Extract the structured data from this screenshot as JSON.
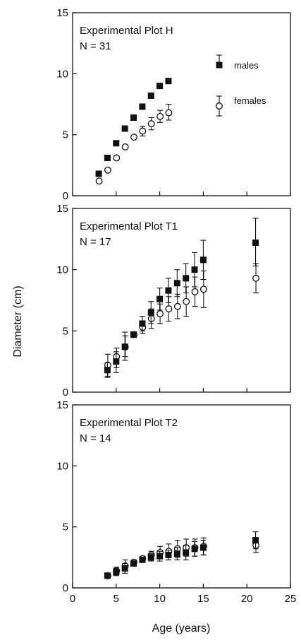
{
  "chart_data": {
    "type": "scatter",
    "ylabel": "Diameter (cm)",
    "xlabel": "Age (years)",
    "xlim": [
      0,
      25
    ],
    "x_ticks": [
      "0",
      "5",
      "10",
      "15",
      "20",
      "25"
    ],
    "y_ticks": [
      "0",
      "5",
      "10",
      "15"
    ],
    "ylim": [
      0,
      15
    ],
    "legend": {
      "placement": "right",
      "panel": 0,
      "males": "males",
      "females": "females"
    },
    "panels": [
      {
        "title": "Experimental Plot H",
        "n_label": "N = 31",
        "series": [
          {
            "name": "males",
            "points": [
              {
                "x": 3,
                "y": 1.8,
                "lo": 1.7,
                "hi": 1.9
              },
              {
                "x": 4,
                "y": 3.1,
                "lo": 3.0,
                "hi": 3.2
              },
              {
                "x": 5,
                "y": 4.3,
                "lo": 4.2,
                "hi": 4.4
              },
              {
                "x": 6,
                "y": 5.5,
                "lo": 5.4,
                "hi": 5.6
              },
              {
                "x": 7,
                "y": 6.4,
                "lo": 6.3,
                "hi": 6.5
              },
              {
                "x": 8,
                "y": 7.3,
                "lo": 7.2,
                "hi": 7.4
              },
              {
                "x": 9,
                "y": 8.2,
                "lo": 8.1,
                "hi": 8.3
              },
              {
                "x": 10,
                "y": 9.0,
                "lo": 8.9,
                "hi": 9.1
              },
              {
                "x": 11,
                "y": 9.4,
                "lo": 9.3,
                "hi": 9.5
              }
            ]
          },
          {
            "name": "females",
            "points": [
              {
                "x": 3,
                "y": 1.2,
                "lo": 1.1,
                "hi": 1.3
              },
              {
                "x": 4,
                "y": 2.1,
                "lo": 2.0,
                "hi": 2.2
              },
              {
                "x": 5,
                "y": 3.1,
                "lo": 3.0,
                "hi": 3.2
              },
              {
                "x": 6,
                "y": 4.0,
                "lo": 3.9,
                "hi": 4.1
              },
              {
                "x": 7,
                "y": 4.8,
                "lo": 4.7,
                "hi": 4.9
              },
              {
                "x": 8,
                "y": 5.3,
                "lo": 4.9,
                "hi": 5.7
              },
              {
                "x": 9,
                "y": 5.9,
                "lo": 5.4,
                "hi": 6.4
              },
              {
                "x": 10,
                "y": 6.5,
                "lo": 6.0,
                "hi": 7.0
              },
              {
                "x": 11,
                "y": 6.8,
                "lo": 6.2,
                "hi": 7.5
              }
            ]
          }
        ]
      },
      {
        "title": "Experimental Plot T1",
        "n_label": "N = 17",
        "series": [
          {
            "name": "males",
            "points": [
              {
                "x": 4,
                "y": 1.8,
                "lo": 1.2,
                "hi": 2.4
              },
              {
                "x": 5,
                "y": 2.5,
                "lo": 1.6,
                "hi": 3.3
              },
              {
                "x": 6,
                "y": 3.7,
                "lo": 2.6,
                "hi": 4.9
              },
              {
                "x": 7,
                "y": 4.7,
                "lo": 4.6,
                "hi": 4.8
              },
              {
                "x": 8,
                "y": 5.6,
                "lo": 5.0,
                "hi": 6.2
              },
              {
                "x": 9,
                "y": 6.5,
                "lo": 5.6,
                "hi": 7.4
              },
              {
                "x": 10,
                "y": 7.6,
                "lo": 6.7,
                "hi": 8.5
              },
              {
                "x": 11,
                "y": 8.3,
                "lo": 7.3,
                "hi": 9.3
              },
              {
                "x": 12,
                "y": 8.9,
                "lo": 7.8,
                "hi": 10.0
              },
              {
                "x": 13,
                "y": 9.3,
                "lo": 8.1,
                "hi": 10.5
              },
              {
                "x": 14,
                "y": 10.0,
                "lo": 8.6,
                "hi": 11.4
              },
              {
                "x": 15,
                "y": 10.8,
                "lo": 9.2,
                "hi": 12.4
              },
              {
                "x": 21,
                "y": 12.2,
                "lo": 10.3,
                "hi": 14.2
              }
            ]
          },
          {
            "name": "females",
            "points": [
              {
                "x": 4,
                "y": 2.2,
                "lo": 1.3,
                "hi": 3.1
              },
              {
                "x": 5,
                "y": 2.9,
                "lo": 2.0,
                "hi": 3.6
              },
              {
                "x": 6,
                "y": 3.7,
                "lo": 2.9,
                "hi": 4.6
              },
              {
                "x": 7,
                "y": 4.7,
                "lo": 4.6,
                "hi": 4.8
              },
              {
                "x": 8,
                "y": 5.3,
                "lo": 4.8,
                "hi": 5.8
              },
              {
                "x": 9,
                "y": 6.0,
                "lo": 5.2,
                "hi": 6.8
              },
              {
                "x": 10,
                "y": 6.4,
                "lo": 5.6,
                "hi": 7.2
              },
              {
                "x": 11,
                "y": 6.8,
                "lo": 5.8,
                "hi": 7.8
              },
              {
                "x": 12,
                "y": 7.0,
                "lo": 6.0,
                "hi": 8.0
              },
              {
                "x": 13,
                "y": 7.4,
                "lo": 6.2,
                "hi": 8.6
              },
              {
                "x": 14,
                "y": 8.2,
                "lo": 7.0,
                "hi": 9.4
              },
              {
                "x": 15,
                "y": 8.4,
                "lo": 6.9,
                "hi": 9.9
              },
              {
                "x": 21,
                "y": 9.3,
                "lo": 8.1,
                "hi": 10.5
              }
            ]
          }
        ]
      },
      {
        "title": "Experimental Plot T2",
        "n_label": "N = 14",
        "series": [
          {
            "name": "males",
            "points": [
              {
                "x": 4,
                "y": 1.0,
                "lo": 0.9,
                "hi": 1.1
              },
              {
                "x": 5,
                "y": 1.3,
                "lo": 1.0,
                "hi": 1.6
              },
              {
                "x": 6,
                "y": 1.6,
                "lo": 1.2,
                "hi": 2.0
              },
              {
                "x": 7,
                "y": 2.0,
                "lo": 1.8,
                "hi": 2.2
              },
              {
                "x": 8,
                "y": 2.3,
                "lo": 2.1,
                "hi": 2.5
              },
              {
                "x": 9,
                "y": 2.5,
                "lo": 2.2,
                "hi": 2.8
              },
              {
                "x": 10,
                "y": 2.6,
                "lo": 2.2,
                "hi": 3.0
              },
              {
                "x": 11,
                "y": 2.7,
                "lo": 2.3,
                "hi": 3.1
              },
              {
                "x": 12,
                "y": 2.8,
                "lo": 2.3,
                "hi": 3.3
              },
              {
                "x": 13,
                "y": 2.9,
                "lo": 2.3,
                "hi": 3.5
              },
              {
                "x": 14,
                "y": 3.2,
                "lo": 2.6,
                "hi": 3.8
              },
              {
                "x": 15,
                "y": 3.3,
                "lo": 2.7,
                "hi": 3.9
              },
              {
                "x": 21,
                "y": 3.9,
                "lo": 3.2,
                "hi": 4.6
              }
            ]
          },
          {
            "name": "females",
            "points": [
              {
                "x": 4,
                "y": 1.0,
                "lo": 0.9,
                "hi": 1.1
              },
              {
                "x": 5,
                "y": 1.4,
                "lo": 1.1,
                "hi": 1.7
              },
              {
                "x": 6,
                "y": 1.8,
                "lo": 1.4,
                "hi": 2.3
              },
              {
                "x": 7,
                "y": 2.1,
                "lo": 1.9,
                "hi": 2.3
              },
              {
                "x": 8,
                "y": 2.4,
                "lo": 2.2,
                "hi": 2.6
              },
              {
                "x": 9,
                "y": 2.7,
                "lo": 2.4,
                "hi": 3.0
              },
              {
                "x": 10,
                "y": 2.9,
                "lo": 2.5,
                "hi": 3.4
              },
              {
                "x": 11,
                "y": 3.0,
                "lo": 2.5,
                "hi": 3.6
              },
              {
                "x": 12,
                "y": 3.2,
                "lo": 2.5,
                "hi": 3.9
              },
              {
                "x": 13,
                "y": 3.3,
                "lo": 2.6,
                "hi": 4.0
              },
              {
                "x": 14,
                "y": 3.3,
                "lo": 2.6,
                "hi": 4.0
              },
              {
                "x": 15,
                "y": 3.4,
                "lo": 2.7,
                "hi": 4.1
              },
              {
                "x": 21,
                "y": 3.5,
                "lo": 2.9,
                "hi": 4.1
              }
            ]
          }
        ]
      }
    ]
  }
}
